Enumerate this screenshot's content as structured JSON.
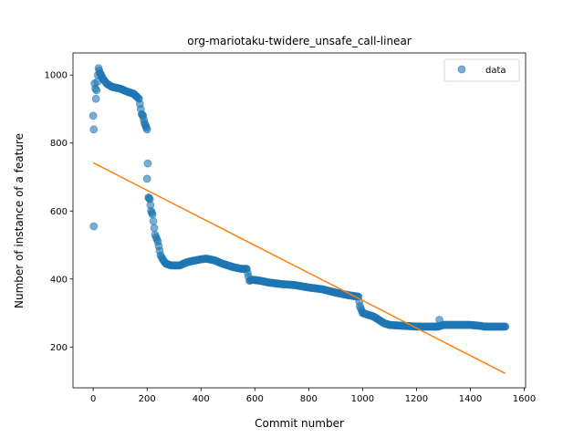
{
  "chart_data": {
    "type": "scatter",
    "title": "org-mariotaku-twidere_unsafe_call-linear",
    "xlabel": "Commit number",
    "ylabel": "Number of instance of a feature",
    "xlim": [
      -75,
      1605
    ],
    "ylim": [
      80,
      1065
    ],
    "xticks": [
      0,
      200,
      400,
      600,
      800,
      1000,
      1200,
      1400,
      1600
    ],
    "yticks": [
      200,
      400,
      600,
      800,
      1000
    ],
    "xtick_labels": [
      "0",
      "200",
      "400",
      "600",
      "800",
      "1000",
      "1200",
      "1400",
      "1600"
    ],
    "ytick_labels": [
      "200",
      "400",
      "600",
      "800",
      "1000"
    ],
    "legend": {
      "position": "top-right",
      "entries": [
        "data"
      ]
    },
    "colors": {
      "data": "#1f77b4",
      "fit": "#ff7f0e"
    },
    "grid": false,
    "profile_x": [
      0,
      2,
      5,
      8,
      10,
      15,
      20,
      25,
      30,
      35,
      40,
      50,
      70,
      100,
      130,
      150,
      170,
      180,
      185,
      190,
      195,
      200,
      205,
      210,
      215,
      220,
      230,
      240,
      250,
      260,
      270,
      290,
      320,
      350,
      380,
      400,
      420,
      450,
      480,
      500,
      520,
      550,
      570,
      580,
      590,
      620,
      650,
      700,
      750,
      800,
      850,
      900,
      950,
      985,
      990,
      1000,
      1040,
      1060,
      1080,
      1100,
      1200,
      1280,
      1300,
      1400,
      1440,
      1450,
      1530
    ],
    "profile_y": [
      880,
      840,
      975,
      960,
      930,
      980,
      1020,
      1005,
      1000,
      990,
      985,
      975,
      965,
      960,
      950,
      945,
      930,
      885,
      880,
      860,
      850,
      840,
      640,
      635,
      600,
      590,
      530,
      510,
      470,
      455,
      445,
      440,
      440,
      450,
      455,
      458,
      460,
      455,
      445,
      440,
      435,
      430,
      430,
      395,
      398,
      395,
      390,
      385,
      382,
      375,
      370,
      360,
      352,
      348,
      320,
      300,
      290,
      280,
      270,
      265,
      260,
      260,
      265,
      265,
      262,
      260,
      260
    ],
    "outliers": [
      {
        "x": 2,
        "y": 555
      },
      {
        "x": 200,
        "y": 695
      },
      {
        "x": 1285,
        "y": 280
      }
    ],
    "fit_line": {
      "x": [
        0,
        1530
      ],
      "y": [
        742,
        122
      ]
    }
  }
}
